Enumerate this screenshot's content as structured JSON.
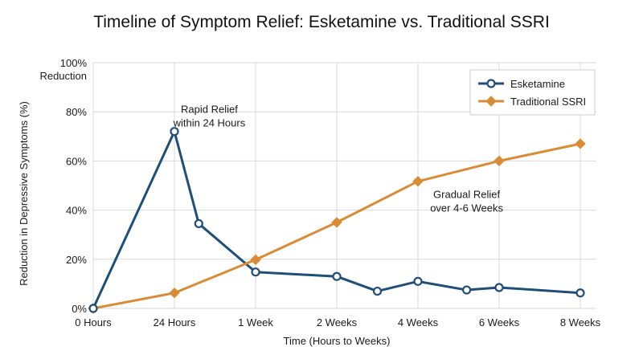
{
  "chart_data": {
    "type": "line",
    "title": "Timeline of Symptom Relief: Esketamine vs. Traditional SSRI",
    "xlabel": "Time (Hours to Weeks)",
    "ylabel": "Reduction in Depressive Symptoms (%)",
    "y_top_label": "Reduction",
    "categories": [
      "0 Hours",
      "24 Hours",
      "1 Week",
      "2 Weeks",
      "4 Weeks",
      "6 Weeks",
      "8 Weeks"
    ],
    "ylim": [
      0,
      100
    ],
    "yticks": [
      "0%",
      "20%",
      "40%",
      "60%",
      "80%",
      "100%"
    ],
    "grid": true,
    "legend_position": "top-right",
    "series": [
      {
        "name": "Esketamine",
        "color": "#1f4e79",
        "marker": "circle",
        "points": [
          {
            "x": 0,
            "y": 0
          },
          {
            "x": 1,
            "y": 72
          },
          {
            "x": 1.3,
            "y": 34.5
          },
          {
            "x": 2,
            "y": 14.8
          },
          {
            "x": 3,
            "y": 13
          },
          {
            "x": 3.5,
            "y": 7
          },
          {
            "x": 4,
            "y": 11
          },
          {
            "x": 4.6,
            "y": 7.5
          },
          {
            "x": 5,
            "y": 8.5
          },
          {
            "x": 6,
            "y": 6.3
          }
        ]
      },
      {
        "name": "Traditional SSRI",
        "color": "#d98c35",
        "marker": "diamond",
        "points": [
          {
            "x": 0,
            "y": 0
          },
          {
            "x": 1,
            "y": 6.3
          },
          {
            "x": 2,
            "y": 19.8
          },
          {
            "x": 3,
            "y": 35
          },
          {
            "x": 4,
            "y": 51.7
          },
          {
            "x": 5,
            "y": 60
          },
          {
            "x": 6,
            "y": 67
          }
        ]
      }
    ],
    "annotations": [
      {
        "lines": [
          "Rapid Relief",
          "within 24 Hours"
        ],
        "x": 1.43,
        "y": 79.5
      },
      {
        "lines": [
          "Gradual Relief",
          "over 4-6 Weeks"
        ],
        "x": 4.6,
        "y": 45
      }
    ]
  }
}
